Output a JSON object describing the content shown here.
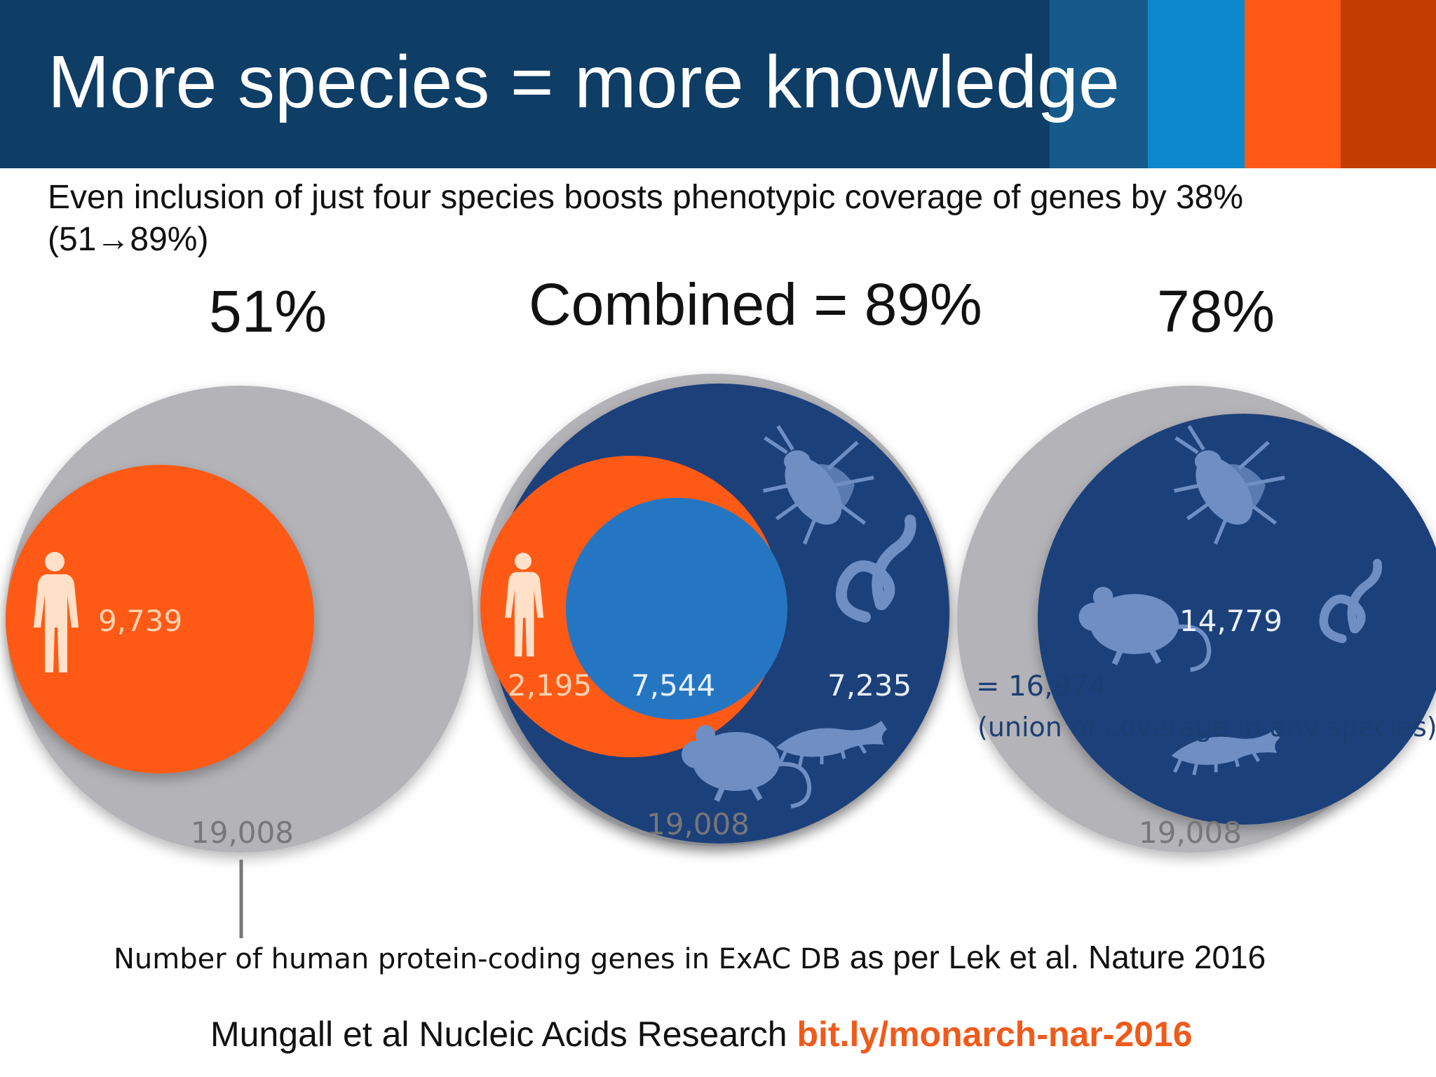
{
  "header": {
    "title": "More species = more knowledge",
    "colors": {
      "band": "#0e3d66",
      "stripe1": "#155a8a",
      "stripe2": "#0e88cc",
      "stripe3": "#fe5a16",
      "stripe4": "#c33d00"
    }
  },
  "subtitle": {
    "line1": "Even inclusion of just four species boosts phenotypic coverage of genes by 38%",
    "line2": "(51→89%)"
  },
  "panels": {
    "human": {
      "percent": "51%",
      "total": "19,008",
      "count": "9,739"
    },
    "combined": {
      "percent": "Combined = 89%",
      "total": "19,008",
      "human_only": "2,195",
      "overlap": "7,544",
      "model_only": "7,235"
    },
    "models": {
      "percent": "78%",
      "total": "19,008",
      "count": "14,779"
    }
  },
  "union": {
    "total": "= 16,974",
    "note": "(union of coverage in any species)"
  },
  "caption": {
    "lead": "Number of human protein-coding genes in ExAC DB",
    "rest": " as per Lek et al. Nature 2016"
  },
  "citation": {
    "text": "Mungall et al Nucleic Acids Research ",
    "link": "bit.ly/monarch-nar-2016"
  },
  "colors": {
    "total_gray": "#b3b3b8",
    "human_orange": "#fe5a16",
    "model_navy": "#1f3f7a",
    "overlap_blue": "#2576c2",
    "silhouette": "#6f8fc4"
  },
  "icons": [
    "human-icon",
    "fly-icon",
    "worm-icon",
    "fish-icon",
    "mouse-icon"
  ]
}
